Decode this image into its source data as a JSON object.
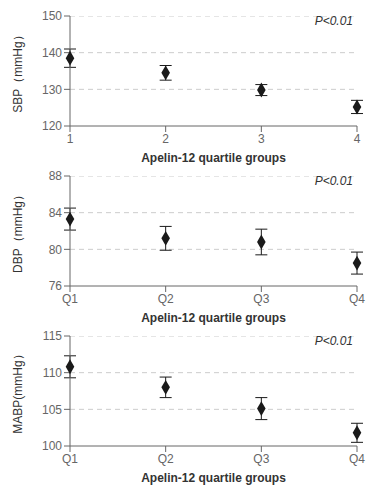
{
  "chart_data": [
    {
      "type": "scatter",
      "categories": [
        "1",
        "2",
        "3",
        "4"
      ],
      "values": [
        138.5,
        134.5,
        129.8,
        125.2
      ],
      "errors": [
        2.5,
        2.0,
        1.5,
        1.8
      ],
      "ylim": [
        120,
        150
      ],
      "yticks": [
        120,
        130,
        140,
        150
      ],
      "reference_lines": [
        130,
        140,
        150
      ],
      "y_label": "SBP（mmHg）",
      "x_label": "Apelin-12 quartile groups",
      "annotation": "P<0.01",
      "marker": "diamond",
      "color": "#1a1a1a",
      "line_style": "dashed"
    },
    {
      "type": "scatter",
      "categories": [
        "Q1",
        "Q2",
        "Q3",
        "Q4"
      ],
      "values": [
        83.3,
        81.2,
        80.8,
        78.5
      ],
      "errors": [
        1.2,
        1.3,
        1.4,
        1.2
      ],
      "ylim": [
        76,
        88
      ],
      "yticks": [
        76,
        80,
        84,
        88
      ],
      "reference_lines": [
        80,
        84,
        88
      ],
      "y_label": "DBP（mmHg）",
      "x_label": "Apelin-12 quartile groups",
      "annotation": "P<0.01",
      "marker": "diamond",
      "color": "#1a1a1a",
      "line_style": "dashed"
    },
    {
      "type": "scatter",
      "categories": [
        "Q1",
        "Q2",
        "Q3",
        "Q4"
      ],
      "values": [
        110.8,
        108.0,
        105.1,
        101.8
      ],
      "errors": [
        1.5,
        1.4,
        1.5,
        1.3
      ],
      "ylim": [
        100,
        115
      ],
      "yticks": [
        100,
        105,
        110,
        115
      ],
      "reference_lines": [
        105,
        110,
        115
      ],
      "y_label": "MABP(mmHg）",
      "x_label": "Apelin-12 quartile groups",
      "annotation": "P<0.01",
      "marker": "diamond",
      "color": "#1a1a1a",
      "line_style": "dashed"
    }
  ]
}
